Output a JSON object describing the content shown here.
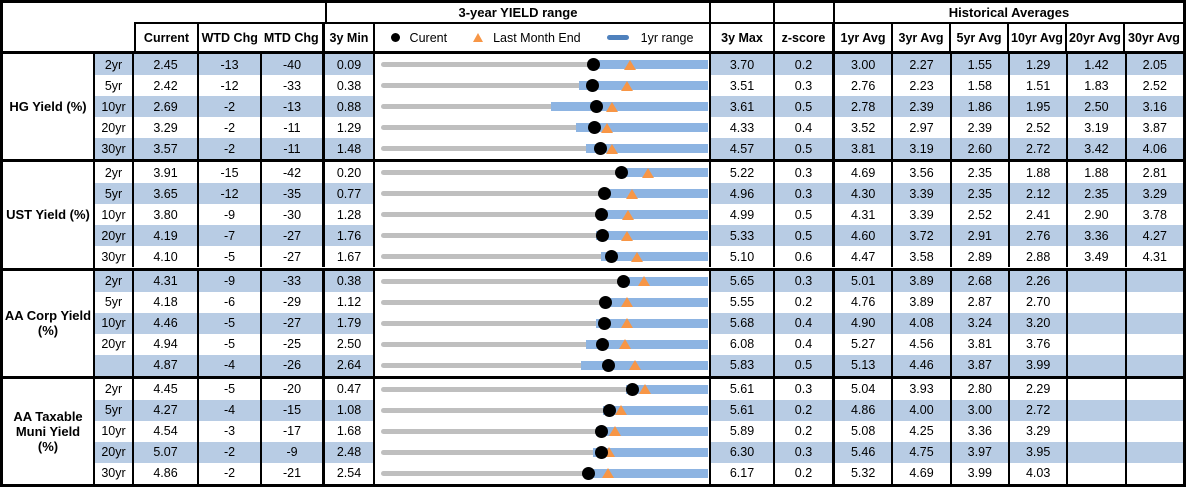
{
  "colors": {
    "band_fill": "#b8cce4",
    "one_year_bar": "#8db4e2",
    "three_year_track": "#bfbfbf",
    "last_month_marker": "#f79646",
    "current_dot": "#000000",
    "legend_dash": "#4f81bd",
    "border": "#000000"
  },
  "chart_data": {
    "type": "table",
    "title_chart_group": "3-year YIELD range",
    "title_hist_group": "Historical Averages",
    "columns": {
      "current": "Current",
      "wtd": "WTD Chg",
      "mtd": "MTD Chg",
      "min": "3y Min",
      "max": "3y Max",
      "z": "z-score"
    },
    "avg_columns": [
      "1yr Avg",
      "3yr Avg",
      "5yr Avg",
      "10yr Avg",
      "20yr Avg",
      "30yr Avg"
    ],
    "legend": {
      "current": "Curent",
      "last_month_end": "Last Month End",
      "range": "1yr range"
    },
    "sections": [
      {
        "label": "HG Yield (%)",
        "rows": [
          {
            "tenor": "2yr",
            "current": "2.45",
            "wtd_chg": "-13",
            "mtd_chg": "-40",
            "min_3y": "0.09",
            "max_3y": "3.70",
            "z_score": "0.2",
            "avgs": [
              "3.00",
              "2.27",
              "1.55",
              "1.29",
              "1.42",
              "2.05"
            ],
            "yr1_low_est": 2.4,
            "yr1_high_est": 3.7
          },
          {
            "tenor": "5yr",
            "current": "2.42",
            "wtd_chg": "-12",
            "mtd_chg": "-33",
            "min_3y": "0.38",
            "max_3y": "3.51",
            "z_score": "0.3",
            "avgs": [
              "2.76",
              "2.23",
              "1.58",
              "1.51",
              "1.83",
              "2.52"
            ],
            "yr1_low_est": 2.29,
            "yr1_high_est": 3.51
          },
          {
            "tenor": "10yr",
            "current": "2.69",
            "wtd_chg": "-2",
            "mtd_chg": "-13",
            "min_3y": "0.88",
            "max_3y": "3.61",
            "z_score": "0.5",
            "avgs": [
              "2.78",
              "2.39",
              "1.86",
              "1.95",
              "2.50",
              "3.16"
            ],
            "yr1_low_est": 2.31,
            "yr1_high_est": 3.61
          },
          {
            "tenor": "20yr",
            "current": "3.29",
            "wtd_chg": "-2",
            "mtd_chg": "-11",
            "min_3y": "1.29",
            "max_3y": "4.33",
            "z_score": "0.4",
            "avgs": [
              "3.52",
              "2.97",
              "2.39",
              "2.52",
              "3.19",
              "3.87"
            ],
            "yr1_low_est": 3.11,
            "yr1_high_est": 4.33
          },
          {
            "tenor": "30yr",
            "current": "3.57",
            "wtd_chg": "-2",
            "mtd_chg": "-11",
            "min_3y": "1.48",
            "max_3y": "4.57",
            "z_score": "0.5",
            "avgs": [
              "3.81",
              "3.19",
              "2.60",
              "2.72",
              "3.42",
              "4.06"
            ],
            "yr1_low_est": 3.43,
            "yr1_high_est": 4.57
          }
        ]
      },
      {
        "label": "UST Yield (%)",
        "rows": [
          {
            "tenor": "2yr",
            "current": "3.91",
            "wtd_chg": "-15",
            "mtd_chg": "-42",
            "min_3y": "0.20",
            "max_3y": "5.22",
            "z_score": "0.3",
            "avgs": [
              "4.69",
              "3.56",
              "2.35",
              "1.88",
              "1.88",
              "2.81"
            ],
            "yr1_low_est": 3.89,
            "yr1_high_est": 5.22
          },
          {
            "tenor": "5yr",
            "current": "3.65",
            "wtd_chg": "-12",
            "mtd_chg": "-35",
            "min_3y": "0.77",
            "max_3y": "4.96",
            "z_score": "0.3",
            "avgs": [
              "4.30",
              "3.39",
              "2.35",
              "2.12",
              "2.35",
              "3.29"
            ],
            "yr1_low_est": 3.62,
            "yr1_high_est": 4.96
          },
          {
            "tenor": "10yr",
            "current": "3.80",
            "wtd_chg": "-9",
            "mtd_chg": "-30",
            "min_3y": "1.28",
            "max_3y": "4.99",
            "z_score": "0.5",
            "avgs": [
              "4.31",
              "3.39",
              "2.52",
              "2.41",
              "2.90",
              "3.78"
            ],
            "yr1_low_est": 3.75,
            "yr1_high_est": 4.99
          },
          {
            "tenor": "20yr",
            "current": "4.19",
            "wtd_chg": "-7",
            "mtd_chg": "-27",
            "min_3y": "1.76",
            "max_3y": "5.33",
            "z_score": "0.5",
            "avgs": [
              "4.60",
              "3.72",
              "2.91",
              "2.76",
              "3.36",
              "4.27"
            ],
            "yr1_low_est": 4.12,
            "yr1_high_est": 5.33
          },
          {
            "tenor": "30yr",
            "current": "4.10",
            "wtd_chg": "-5",
            "mtd_chg": "-27",
            "min_3y": "1.67",
            "max_3y": "5.10",
            "z_score": "0.6",
            "avgs": [
              "4.47",
              "3.58",
              "2.89",
              "2.88",
              "3.49",
              "4.31"
            ],
            "yr1_low_est": 3.99,
            "yr1_high_est": 5.1
          }
        ]
      },
      {
        "label": "AA Corp Yield\n(%)",
        "rows": [
          {
            "tenor": "2yr",
            "current": "4.31",
            "wtd_chg": "-9",
            "mtd_chg": "-33",
            "min_3y": "0.38",
            "max_3y": "5.65",
            "z_score": "0.3",
            "avgs": [
              "5.01",
              "3.89",
              "2.68",
              "2.26",
              "",
              ""
            ],
            "yr1_low_est": 4.28,
            "yr1_high_est": 5.65
          },
          {
            "tenor": "5yr",
            "current": "4.18",
            "wtd_chg": "-6",
            "mtd_chg": "-29",
            "min_3y": "1.12",
            "max_3y": "5.55",
            "z_score": "0.2",
            "avgs": [
              "4.76",
              "3.89",
              "2.87",
              "2.70",
              "",
              ""
            ],
            "yr1_low_est": 4.15,
            "yr1_high_est": 5.55
          },
          {
            "tenor": "10yr",
            "current": "4.46",
            "wtd_chg": "-5",
            "mtd_chg": "-27",
            "min_3y": "1.79",
            "max_3y": "5.68",
            "z_score": "0.4",
            "avgs": [
              "4.90",
              "4.08",
              "3.24",
              "3.20",
              "",
              ""
            ],
            "yr1_low_est": 4.36,
            "yr1_high_est": 5.68
          },
          {
            "tenor": "20yr",
            "current": "4.94",
            "wtd_chg": "-5",
            "mtd_chg": "-25",
            "min_3y": "2.50",
            "max_3y": "6.08",
            "z_score": "0.4",
            "avgs": [
              "5.27",
              "4.56",
              "3.81",
              "3.76",
              "",
              ""
            ],
            "yr1_low_est": 4.76,
            "yr1_high_est": 6.08
          },
          {
            "tenor": "",
            "current": "4.87",
            "wtd_chg": "-4",
            "mtd_chg": "-26",
            "min_3y": "2.64",
            "max_3y": "5.83",
            "z_score": "0.5",
            "avgs": [
              "5.13",
              "4.46",
              "3.87",
              "3.99",
              "",
              ""
            ],
            "yr1_low_est": 4.6,
            "yr1_high_est": 5.83
          }
        ]
      },
      {
        "label": "AA Taxable\nMuni Yield\n(%)",
        "rows": [
          {
            "tenor": "2yr",
            "current": "4.45",
            "wtd_chg": "-5",
            "mtd_chg": "-20",
            "min_3y": "0.47",
            "max_3y": "5.61",
            "z_score": "0.3",
            "avgs": [
              "5.04",
              "3.93",
              "2.80",
              "2.29",
              "",
              ""
            ],
            "yr1_low_est": 4.35,
            "yr1_high_est": 5.61
          },
          {
            "tenor": "5yr",
            "current": "4.27",
            "wtd_chg": "-4",
            "mtd_chg": "-15",
            "min_3y": "1.08",
            "max_3y": "5.61",
            "z_score": "0.2",
            "avgs": [
              "4.86",
              "4.00",
              "3.00",
              "2.72",
              "",
              ""
            ],
            "yr1_low_est": 4.17,
            "yr1_high_est": 5.61
          },
          {
            "tenor": "10yr",
            "current": "4.54",
            "wtd_chg": "-3",
            "mtd_chg": "-17",
            "min_3y": "1.68",
            "max_3y": "5.89",
            "z_score": "0.2",
            "avgs": [
              "5.08",
              "4.25",
              "3.36",
              "3.29",
              "",
              ""
            ],
            "yr1_low_est": 4.46,
            "yr1_high_est": 5.89
          },
          {
            "tenor": "20yr",
            "current": "5.07",
            "wtd_chg": "-2",
            "mtd_chg": "-9",
            "min_3y": "2.48",
            "max_3y": "6.30",
            "z_score": "0.3",
            "avgs": [
              "5.46",
              "4.75",
              "3.97",
              "3.95",
              "",
              ""
            ],
            "yr1_low_est": 4.97,
            "yr1_high_est": 6.3
          },
          {
            "tenor": "30yr",
            "current": "4.86",
            "wtd_chg": "-2",
            "mtd_chg": "-21",
            "min_3y": "2.54",
            "max_3y": "6.17",
            "z_score": "0.2",
            "avgs": [
              "5.32",
              "4.69",
              "3.99",
              "4.03",
              "",
              ""
            ],
            "yr1_low_est": 4.83,
            "yr1_high_est": 6.17
          }
        ]
      }
    ]
  }
}
